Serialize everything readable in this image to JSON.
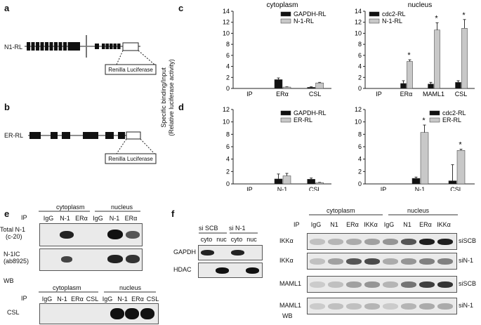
{
  "panel_a": {
    "letter": "a",
    "construct": "N1-RL",
    "reporter": "Renilla Luciferase"
  },
  "panel_b": {
    "letter": "b",
    "construct": "ER-RL",
    "reporter": "Renilla Luciferase"
  },
  "panel_c": {
    "letter": "c"
  },
  "panel_d": {
    "letter": "d"
  },
  "y_axis_label_line1": "Specific binding/Input",
  "y_axis_label_line2": "(Relative luciferase activity)",
  "chart_data": [
    {
      "type": "bar",
      "panel": "c",
      "title": "cytoplasm",
      "categories": [
        "IP",
        "ERα",
        "CSL"
      ],
      "series": [
        {
          "name": "GAPDH-RL",
          "color": "#111111",
          "values": [
            null,
            1.6,
            0.2
          ],
          "errors": [
            0,
            0.3,
            0.1
          ]
        },
        {
          "name": "N-1-RL",
          "color": "#c8c8c8",
          "values": [
            null,
            0.25,
            1.0
          ],
          "errors": [
            0,
            0.05,
            0.1
          ]
        }
      ],
      "ylim": [
        0,
        14
      ],
      "yticks": [
        0,
        2,
        4,
        6,
        8,
        10,
        12,
        14
      ],
      "legend": "top-right"
    },
    {
      "type": "bar",
      "panel": "c",
      "title": "nucleus",
      "categories": [
        "IP",
        "ERα",
        "MAML1",
        "CSL"
      ],
      "series": [
        {
          "name": "cdc2-RL",
          "color": "#111111",
          "values": [
            null,
            0.9,
            0.8,
            1.1
          ],
          "errors": [
            0,
            0.5,
            0.3,
            0.3
          ]
        },
        {
          "name": "N-1-RL",
          "color": "#c8c8c8",
          "values": [
            null,
            4.9,
            10.6,
            10.9
          ],
          "errors": [
            0,
            0.3,
            1.3,
            1.6
          ]
        }
      ],
      "significance": [
        "",
        "*",
        "*",
        "*"
      ],
      "ylim": [
        0,
        14
      ],
      "yticks": [
        0,
        2,
        4,
        6,
        8,
        10,
        12,
        14
      ],
      "legend": "top-left"
    },
    {
      "type": "bar",
      "panel": "d",
      "title": "",
      "categories": [
        "IP",
        "N-1",
        "CSL"
      ],
      "series": [
        {
          "name": "GAPDH-RL",
          "color": "#111111",
          "values": [
            null,
            0.8,
            0.75
          ],
          "errors": [
            0,
            0.8,
            0.2
          ]
        },
        {
          "name": "ER-RL",
          "color": "#c8c8c8",
          "values": [
            null,
            1.3,
            0.2
          ],
          "errors": [
            0,
            0.4,
            0.05
          ]
        }
      ],
      "ylim": [
        0,
        12
      ],
      "yticks": [
        0,
        2,
        4,
        6,
        8,
        10,
        12
      ],
      "legend": "top-right"
    },
    {
      "type": "bar",
      "panel": "d",
      "title": "",
      "categories": [
        "IP",
        "N-1",
        "CSL"
      ],
      "series": [
        {
          "name": "cdc2-RL",
          "color": "#111111",
          "values": [
            null,
            0.9,
            0.5
          ],
          "errors": [
            0,
            0.2,
            2.6
          ]
        },
        {
          "name": "ER-RL",
          "color": "#c8c8c8",
          "values": [
            null,
            8.3,
            5.4
          ],
          "errors": [
            0,
            1.2,
            0.2
          ]
        }
      ],
      "significance": [
        "",
        "*",
        "*"
      ],
      "ylim": [
        0,
        12
      ],
      "yticks": [
        0,
        2,
        4,
        6,
        8,
        10,
        12
      ],
      "legend": "top-right"
    }
  ],
  "panel_e": {
    "letter": "e",
    "ip": "IP",
    "wb": "WB",
    "top": {
      "cytoplasm": "cytoplasm",
      "nucleus": "nucleus",
      "lanes": [
        "IgG",
        "N-1",
        "ERα",
        "IgG",
        "N-1",
        "ERα"
      ],
      "rows": [
        {
          "l1": "Total N-1",
          "l2": "(c-20)"
        },
        {
          "l1": "N-1IC",
          "l2": "(ab8925)"
        }
      ]
    },
    "bottom": {
      "cytoplasm": "cytoplasm",
      "nucleus": "nucleus",
      "lanes": [
        "IgG",
        "N-1",
        "ERα",
        "CSL",
        "IgG",
        "N-1",
        "ERα",
        "CSL"
      ],
      "rows": [
        {
          "l1": "CSL"
        }
      ]
    }
  },
  "panel_f": {
    "letter": "f",
    "left": {
      "groups": [
        "si SCB",
        "si N-1"
      ],
      "lanes": [
        "cyto",
        "nuc",
        "cyto",
        "nuc"
      ],
      "rows": [
        "GAPDH",
        "HDAC"
      ]
    },
    "right": {
      "ip": "IP",
      "wb": "WB",
      "cytoplasm": "cytoplasm",
      "nucleus": "nucleus",
      "lanes": [
        "IgG",
        "N1",
        "ERα",
        "IKKα",
        "IgG",
        "N1",
        "ERα",
        "IKKα"
      ],
      "rows": [
        {
          "left": "IKKα",
          "right": "siSCB"
        },
        {
          "left": "IKKα",
          "right": "siN-1"
        },
        {
          "left": "MAML1",
          "right": "siSCB"
        },
        {
          "left": "MAML1",
          "right": "siN-1"
        }
      ]
    }
  }
}
